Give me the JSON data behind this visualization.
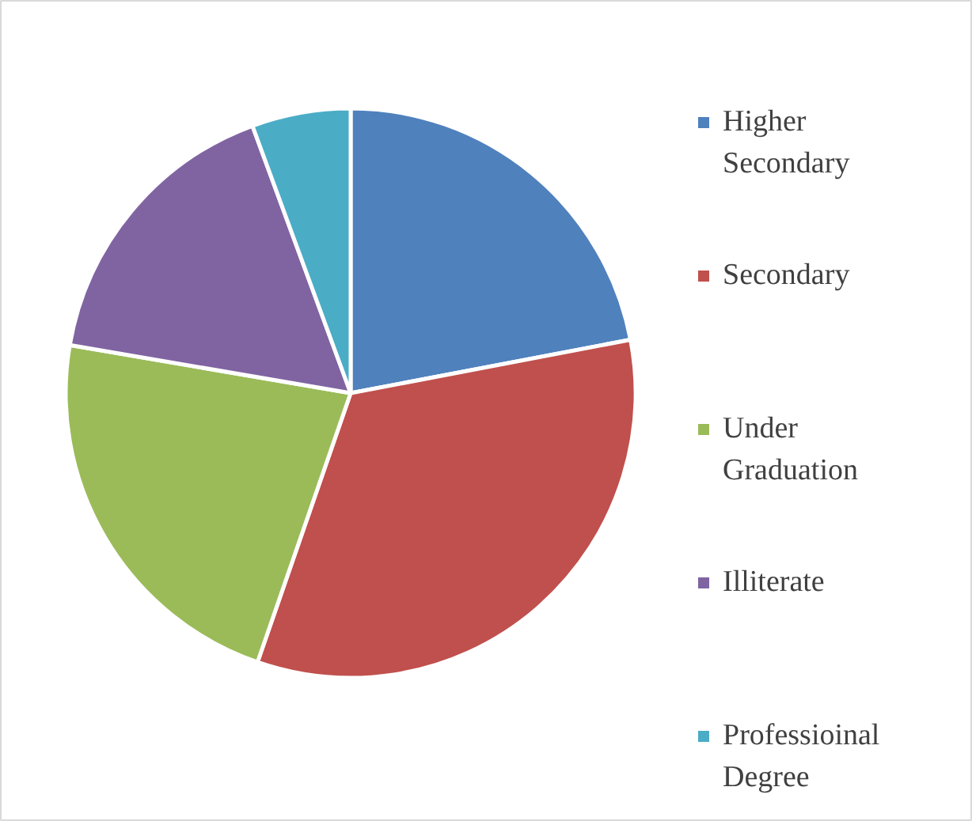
{
  "chart_data": {
    "type": "pie",
    "categories": [
      "Higher Secondary",
      "Secondary",
      "Under Graduation",
      "Illiterate",
      "Professioinal Degree"
    ],
    "values": [
      22,
      33.3,
      22.4,
      16.7,
      5.6
    ],
    "colors": [
      "#4f81bd",
      "#c0504d",
      "#9bbb59",
      "#8064a2",
      "#4bacc6"
    ],
    "legend": "right"
  }
}
